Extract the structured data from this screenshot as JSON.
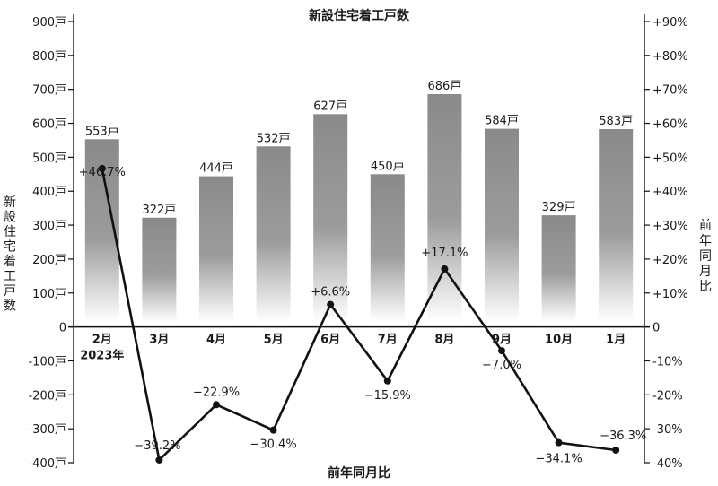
{
  "chart_data": {
    "type": "bar",
    "title": "新設住宅着工戸数",
    "categories": [
      "2月",
      "3月",
      "4月",
      "5月",
      "6月",
      "7月",
      "8月",
      "9月",
      "10月",
      "1月"
    ],
    "category_sub": [
      "2023年",
      "",
      "",
      "",
      "",
      "",
      "",
      "",
      "",
      ""
    ],
    "series": [
      {
        "type": "bar",
        "axis": "left",
        "values": [
          553,
          322,
          444,
          532,
          627,
          450,
          686,
          584,
          329,
          583
        ],
        "labels": [
          "553戸",
          "322戸",
          "444戸",
          "532戸",
          "627戸",
          "450戸",
          "686戸",
          "584戸",
          "329戸",
          "583戸"
        ]
      },
      {
        "type": "line",
        "axis": "right",
        "values": [
          46.7,
          -39.2,
          -22.9,
          -30.4,
          6.6,
          -15.9,
          17.1,
          -7.0,
          -34.1,
          -36.3
        ],
        "labels": [
          "+46.7%",
          "−39.2%",
          "−22.9%",
          "−30.4%",
          "+6.6%",
          "−15.9%",
          "+17.1%",
          "−7.0%",
          "−34.1%",
          "−36.3%"
        ]
      }
    ],
    "ylabel_left": "新設住宅着工戸数",
    "ylabel_right": "前年同月比",
    "xlabel": "前年同月比",
    "ylim_left": [
      -400,
      900
    ],
    "ylim_right": [
      -40,
      90
    ],
    "yticks_left": [
      "900戸",
      "800戸",
      "700戸",
      "600戸",
      "500戸",
      "400戸",
      "300戸",
      "200戸",
      "100戸",
      "0",
      "-100戸",
      "-200戸",
      "-300戸",
      "-400戸"
    ],
    "yticks_right": [
      "+90%",
      "+80%",
      "+70%",
      "+60%",
      "+50%",
      "+40%",
      "+30%",
      "+20%",
      "+10%",
      "0",
      "-10%",
      "-20%",
      "-30%",
      "-40%"
    ],
    "grid": false,
    "legend": "none"
  }
}
